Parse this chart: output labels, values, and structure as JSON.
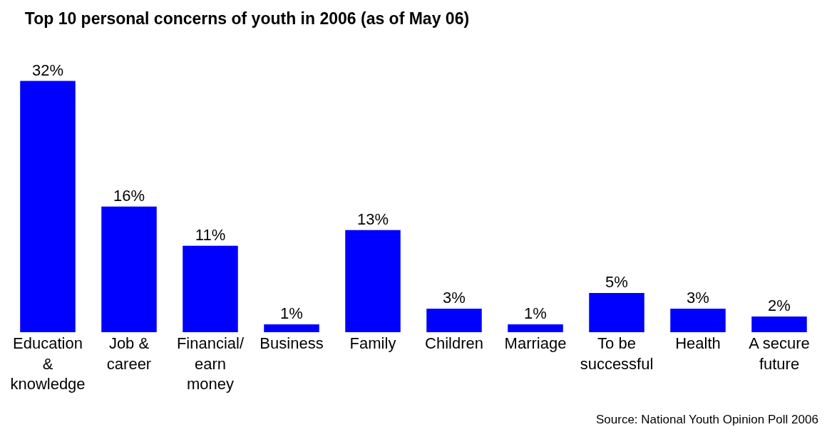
{
  "chart_data": {
    "type": "bar",
    "title": "Top 10 personal concerns of youth in 2006 (as of May 06)",
    "categories": [
      "Education & knowledge",
      "Job & career",
      "Financial/ earn money",
      "Business",
      "Family",
      "Children",
      "Marriage",
      "To be successful",
      "Health",
      "A secure future"
    ],
    "values": [
      32,
      16,
      11,
      1,
      13,
      3,
      1,
      5,
      3,
      2
    ],
    "color": "#0000ff",
    "data_labels": true,
    "value_labels": [
      "32%",
      "16%",
      "11%",
      "1%",
      "13%",
      "3%",
      "1%",
      "5%",
      "3%",
      "2%"
    ],
    "grid": false,
    "annotations": [
      "Source: National Youth Opinion Poll 2006"
    ]
  }
}
